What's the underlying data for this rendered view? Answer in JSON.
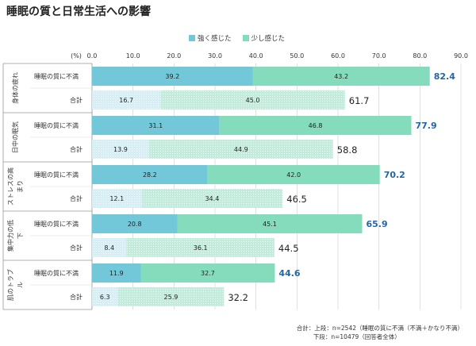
{
  "title": "睡眠の質と日常生活への影響",
  "colors": {
    "strong": "#72c8d8",
    "strong_light": "#d6eef4",
    "slight": "#84dcbc",
    "slight_light": "#c4ecdc",
    "total_highlight": "#2266a8",
    "grid": "#cccccc"
  },
  "legend": [
    {
      "label": "強く感じた",
      "color": "#72c8d8"
    },
    {
      "label": "少し感じた",
      "color": "#84dcbc"
    }
  ],
  "axis_unit_label": "(%)",
  "note": {
    "line1": "合計：上段：n=2542（睡眠の質に不満（不満＋かなり不満）",
    "line2": "下段：n=10479（回答者全体）"
  },
  "chart_data": {
    "type": "bar",
    "orientation": "horizontal",
    "stacked": true,
    "title": "睡眠の質と日常生活への影響",
    "xlim": [
      0,
      90
    ],
    "xticks": [
      "0.0",
      "10.0",
      "20.0",
      "30.0",
      "40.0",
      "50.0",
      "60.0",
      "70.0",
      "80.0",
      "90.0"
    ],
    "series_names": [
      "強く感じた",
      "少し感じた"
    ],
    "groups": [
      {
        "name": "身体の疲れ",
        "rows": [
          {
            "label": "睡眠の質に不満",
            "strong": 39.2,
            "slight": 43.2,
            "total": "82.4",
            "highlight": true
          },
          {
            "label": "合計",
            "strong": 16.7,
            "slight": 45.0,
            "total": "61.7",
            "highlight": false
          }
        ]
      },
      {
        "name": "日中の眠気",
        "rows": [
          {
            "label": "睡眠の質に不満",
            "strong": 31.1,
            "slight": 46.8,
            "total": "77.9",
            "highlight": true
          },
          {
            "label": "合計",
            "strong": 13.9,
            "slight": 44.9,
            "total": "58.8",
            "highlight": false
          }
        ]
      },
      {
        "name": "ストレスの高まり",
        "rows": [
          {
            "label": "睡眠の質に不満",
            "strong": 28.2,
            "slight": 42.0,
            "total": "70.2",
            "highlight": true
          },
          {
            "label": "合計",
            "strong": 12.1,
            "slight": 34.4,
            "total": "46.5",
            "highlight": false
          }
        ]
      },
      {
        "name": "集中力の低下",
        "rows": [
          {
            "label": "睡眠の質に不満",
            "strong": 20.8,
            "slight": 45.1,
            "total": "65.9",
            "highlight": true
          },
          {
            "label": "合計",
            "strong": 8.4,
            "slight": 36.1,
            "total": "44.5",
            "highlight": false
          }
        ]
      },
      {
        "name": "肌のトラブル",
        "rows": [
          {
            "label": "睡眠の質に不満",
            "strong": 11.9,
            "slight": 32.7,
            "total": "44.6",
            "highlight": true
          },
          {
            "label": "合計",
            "strong": 6.3,
            "slight": 25.9,
            "total": "32.2",
            "highlight": false
          }
        ]
      }
    ]
  }
}
